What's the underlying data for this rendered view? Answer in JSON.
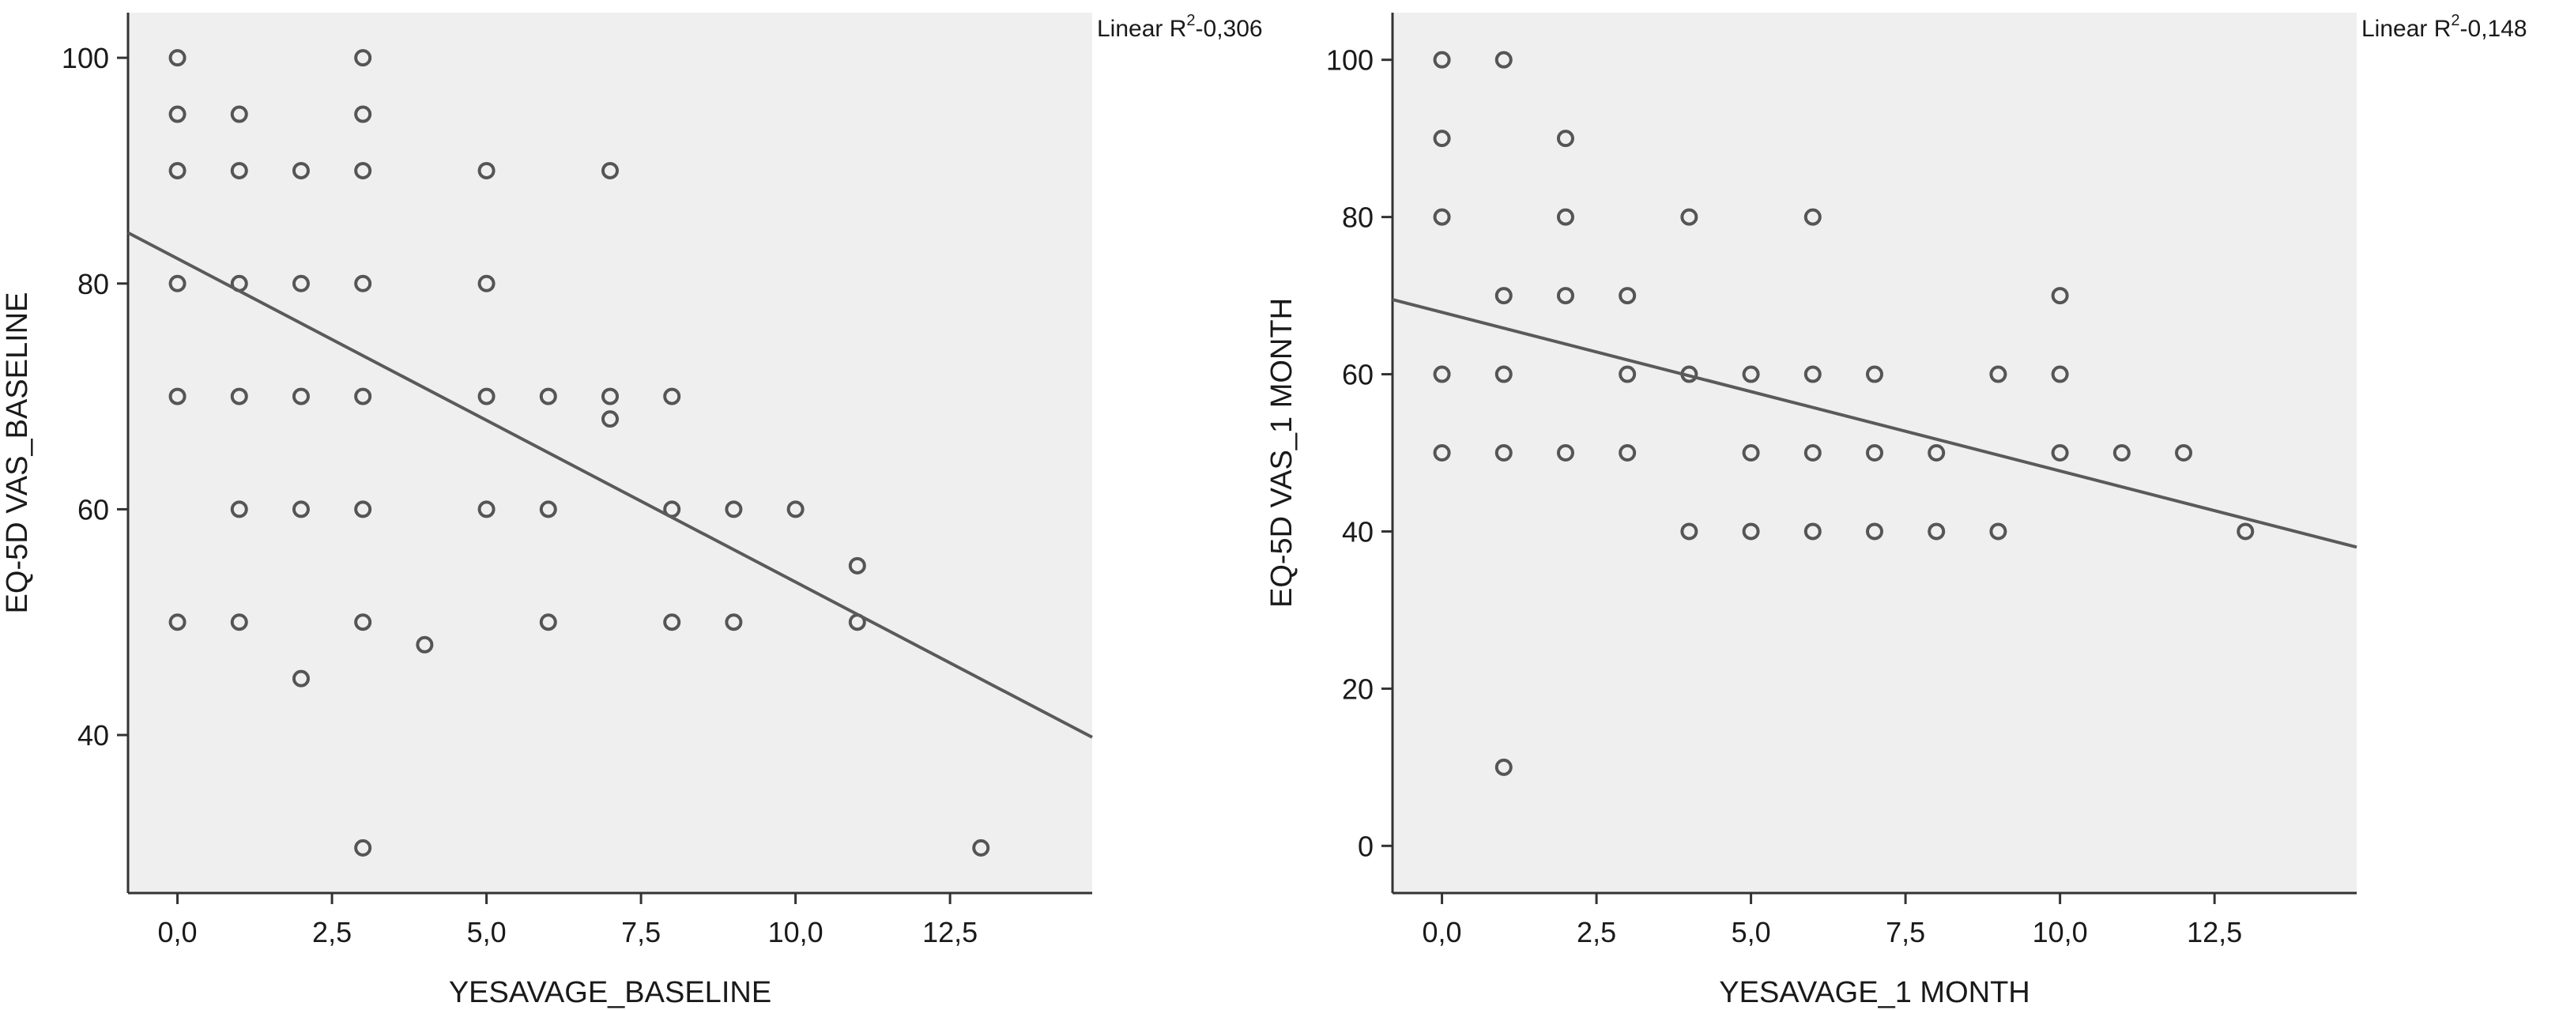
{
  "chart_data": [
    {
      "type": "scatter",
      "xlabel": "YESAVAGE_BASELINE",
      "ylabel": "EQ-5D VAS_BASELINE",
      "x_ticks": [
        "0,0",
        "2,5",
        "5,0",
        "7,5",
        "10,0",
        "12,5"
      ],
      "y_ticks": [
        "40",
        "60",
        "80",
        "100"
      ],
      "xlim": [
        -0.8,
        14.8
      ],
      "ylim": [
        26,
        104
      ],
      "fit": {
        "label_prefix": "Linear R",
        "label_sup": "2",
        "label_suffix": "-0,306",
        "x1": -0.8,
        "y1": 84.5,
        "x2": 14.8,
        "y2": 39.8
      },
      "points": [
        {
          "x": 0,
          "y": 100
        },
        {
          "x": 0,
          "y": 90
        },
        {
          "x": 0,
          "y": 80
        },
        {
          "x": 0,
          "y": 70
        },
        {
          "x": 0,
          "y": 50
        },
        {
          "x": 0,
          "y": 95
        },
        {
          "x": 1,
          "y": 95
        },
        {
          "x": 1,
          "y": 90
        },
        {
          "x": 1,
          "y": 80
        },
        {
          "x": 1,
          "y": 70
        },
        {
          "x": 1,
          "y": 60
        },
        {
          "x": 1,
          "y": 50
        },
        {
          "x": 2,
          "y": 90
        },
        {
          "x": 2,
          "y": 80
        },
        {
          "x": 2,
          "y": 70
        },
        {
          "x": 2,
          "y": 60
        },
        {
          "x": 2,
          "y": 45
        },
        {
          "x": 3,
          "y": 100
        },
        {
          "x": 3,
          "y": 95
        },
        {
          "x": 3,
          "y": 90
        },
        {
          "x": 3,
          "y": 80
        },
        {
          "x": 3,
          "y": 70
        },
        {
          "x": 3,
          "y": 60
        },
        {
          "x": 3,
          "y": 50
        },
        {
          "x": 3,
          "y": 30
        },
        {
          "x": 4,
          "y": 48
        },
        {
          "x": 5,
          "y": 90
        },
        {
          "x": 5,
          "y": 80
        },
        {
          "x": 5,
          "y": 70
        },
        {
          "x": 5,
          "y": 60
        },
        {
          "x": 6,
          "y": 70
        },
        {
          "x": 6,
          "y": 60
        },
        {
          "x": 6,
          "y": 50
        },
        {
          "x": 7,
          "y": 90
        },
        {
          "x": 7,
          "y": 70
        },
        {
          "x": 7,
          "y": 68
        },
        {
          "x": 8,
          "y": 70
        },
        {
          "x": 8,
          "y": 60
        },
        {
          "x": 8,
          "y": 50
        },
        {
          "x": 9,
          "y": 60
        },
        {
          "x": 9,
          "y": 50
        },
        {
          "x": 10,
          "y": 60
        },
        {
          "x": 11,
          "y": 55
        },
        {
          "x": 11,
          "y": 50
        },
        {
          "x": 13,
          "y": 30
        }
      ]
    },
    {
      "type": "scatter",
      "xlabel": "YESAVAGE_1 MONTH",
      "ylabel": "EQ-5D VAS_1 MONTH",
      "x_ticks": [
        "0,0",
        "2,5",
        "5,0",
        "7,5",
        "10,0",
        "12,5"
      ],
      "y_ticks": [
        "0",
        "20",
        "40",
        "60",
        "80",
        "100"
      ],
      "xlim": [
        -0.8,
        14.8
      ],
      "ylim": [
        -6,
        106
      ],
      "fit": {
        "label_prefix": "Linear R",
        "label_sup": "2",
        "label_suffix": "-0,148",
        "x1": -0.8,
        "y1": 69.5,
        "x2": 14.8,
        "y2": 38
      },
      "points": [
        {
          "x": 0,
          "y": 100
        },
        {
          "x": 0,
          "y": 90
        },
        {
          "x": 0,
          "y": 80
        },
        {
          "x": 0,
          "y": 60
        },
        {
          "x": 0,
          "y": 50
        },
        {
          "x": 1,
          "y": 100
        },
        {
          "x": 1,
          "y": 70
        },
        {
          "x": 1,
          "y": 60
        },
        {
          "x": 1,
          "y": 50
        },
        {
          "x": 1,
          "y": 10
        },
        {
          "x": 2,
          "y": 90
        },
        {
          "x": 2,
          "y": 80
        },
        {
          "x": 2,
          "y": 70
        },
        {
          "x": 2,
          "y": 50
        },
        {
          "x": 3,
          "y": 70
        },
        {
          "x": 3,
          "y": 60
        },
        {
          "x": 3,
          "y": 50
        },
        {
          "x": 4,
          "y": 80
        },
        {
          "x": 4,
          "y": 60
        },
        {
          "x": 4,
          "y": 40
        },
        {
          "x": 5,
          "y": 60
        },
        {
          "x": 5,
          "y": 50
        },
        {
          "x": 5,
          "y": 40
        },
        {
          "x": 6,
          "y": 80
        },
        {
          "x": 6,
          "y": 60
        },
        {
          "x": 6,
          "y": 50
        },
        {
          "x": 6,
          "y": 40
        },
        {
          "x": 7,
          "y": 60
        },
        {
          "x": 7,
          "y": 50
        },
        {
          "x": 7,
          "y": 40
        },
        {
          "x": 8,
          "y": 50
        },
        {
          "x": 8,
          "y": 40
        },
        {
          "x": 9,
          "y": 60
        },
        {
          "x": 9,
          "y": 40
        },
        {
          "x": 10,
          "y": 70
        },
        {
          "x": 10,
          "y": 60
        },
        {
          "x": 10,
          "y": 50
        },
        {
          "x": 11,
          "y": 50
        },
        {
          "x": 12,
          "y": 50
        },
        {
          "x": 13,
          "y": 40
        }
      ]
    }
  ],
  "colors": {
    "plot_bg": "#efefef",
    "axis": "#333333",
    "point": "#555555",
    "fit_line": "#5a5a5a"
  }
}
